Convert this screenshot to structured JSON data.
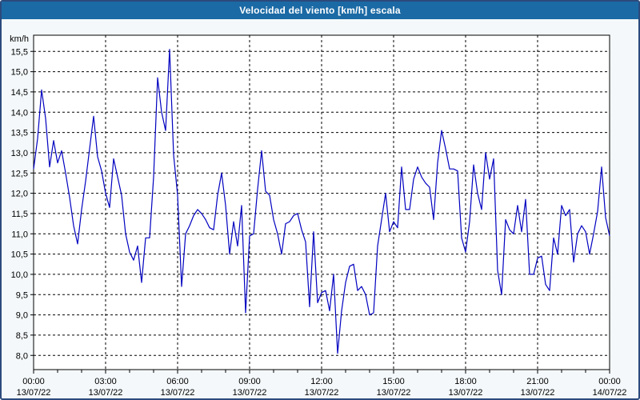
{
  "colors": {
    "titlebar": "#1b6aa5",
    "titlebar_text": "#ffffff",
    "background": "#f4f8fa",
    "plot_background": "#ffffff",
    "outer_border": "#2b4a7d",
    "grid": "#000000",
    "frame": "#000000",
    "label_text": "#000000",
    "line": "#0000c0"
  },
  "chart_data": {
    "type": "line",
    "title": "Velocidad del viento [km/h] escala",
    "ylabel": "km/h",
    "grid": "dashed",
    "legend": "none",
    "y_axis": {
      "ylim": [
        7.65,
        15.9
      ],
      "tick_step": 0.5,
      "decimal_separator": ",",
      "ticks": [
        {
          "value": 15.5,
          "label": "15,5"
        },
        {
          "value": 15.0,
          "label": "15,0"
        },
        {
          "value": 14.5,
          "label": "14,5"
        },
        {
          "value": 14.0,
          "label": "14,0"
        },
        {
          "value": 13.5,
          "label": "13,5"
        },
        {
          "value": 13.0,
          "label": "13,0"
        },
        {
          "value": 12.5,
          "label": "12,5"
        },
        {
          "value": 12.0,
          "label": "12,0"
        },
        {
          "value": 11.5,
          "label": "11,5"
        },
        {
          "value": 11.0,
          "label": "11,0"
        },
        {
          "value": 10.5,
          "label": "10,5"
        },
        {
          "value": 10.0,
          "label": "10,0"
        },
        {
          "value": 9.5,
          "label": "9,5"
        },
        {
          "value": 9.0,
          "label": "9,0"
        },
        {
          "value": 8.5,
          "label": "8,5"
        },
        {
          "value": 8.0,
          "label": "8,0"
        }
      ]
    },
    "x_axis": {
      "hours_total": 24,
      "major_step_hours": 3,
      "minor_step_hours": 1,
      "ticks": [
        {
          "hour": 0,
          "time": "00:00",
          "date": "13/07/22"
        },
        {
          "hour": 3,
          "time": "03:00",
          "date": "13/07/22"
        },
        {
          "hour": 6,
          "time": "06:00",
          "date": "13/07/22"
        },
        {
          "hour": 9,
          "time": "09:00",
          "date": "13/07/22"
        },
        {
          "hour": 12,
          "time": "12:00",
          "date": "13/07/22"
        },
        {
          "hour": 15,
          "time": "15:00",
          "date": "13/07/22"
        },
        {
          "hour": 18,
          "time": "18:00",
          "date": "13/07/22"
        },
        {
          "hour": 21,
          "time": "21:00",
          "date": "13/07/22"
        },
        {
          "hour": 24,
          "time": "00:00",
          "date": "14/07/22"
        }
      ]
    },
    "series": [
      {
        "name": "Velocidad del viento [km/h]",
        "sampling_minutes": 10,
        "start_hour": 0,
        "values": [
          12.6,
          13.35,
          14.55,
          13.85,
          12.65,
          13.3,
          12.75,
          13.05,
          12.5,
          11.9,
          11.2,
          10.75,
          11.6,
          12.3,
          13.1,
          13.9,
          12.9,
          12.55,
          12.0,
          11.65,
          12.85,
          12.4,
          11.95,
          11.0,
          10.55,
          10.35,
          10.7,
          9.8,
          10.9,
          10.9,
          12.4,
          14.85,
          14.0,
          13.55,
          15.55,
          12.95,
          11.95,
          9.7,
          11.0,
          11.2,
          11.45,
          11.6,
          11.5,
          11.35,
          11.15,
          11.1,
          11.95,
          12.5,
          11.7,
          10.5,
          11.3,
          10.7,
          11.7,
          9.05,
          10.95,
          11.0,
          12.1,
          13.05,
          12.05,
          11.95,
          11.35,
          11.0,
          10.5,
          11.25,
          11.3,
          11.45,
          11.5,
          11.1,
          10.8,
          9.2,
          11.05,
          9.3,
          9.55,
          9.6,
          9.1,
          10.0,
          8.05,
          9.1,
          9.8,
          10.2,
          10.25,
          9.6,
          9.7,
          9.5,
          9.0,
          9.05,
          10.7,
          11.35,
          12.0,
          11.05,
          11.3,
          11.15,
          12.65,
          11.6,
          11.6,
          12.35,
          12.65,
          12.4,
          12.25,
          12.15,
          11.35,
          12.75,
          13.55,
          13.1,
          12.6,
          12.6,
          12.55,
          10.9,
          10.55,
          11.3,
          12.7,
          12.0,
          11.6,
          13.0,
          12.35,
          12.85,
          10.1,
          9.5,
          11.35,
          11.1,
          11.0,
          11.7,
          11.05,
          11.85,
          10.0,
          10.0,
          10.4,
          10.45,
          9.75,
          9.6,
          10.9,
          10.5,
          11.7,
          11.45,
          11.6,
          10.3,
          11.0,
          11.2,
          11.05,
          10.5,
          11.0,
          11.55,
          12.65,
          11.4,
          10.95
        ]
      }
    ]
  }
}
